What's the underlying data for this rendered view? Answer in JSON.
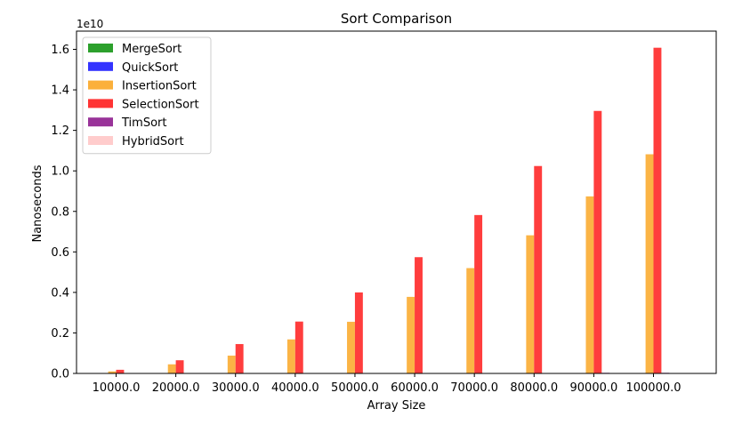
{
  "chart_data": {
    "type": "bar",
    "title": "Sort Comparison",
    "xlabel": "Array Size",
    "ylabel": "Nanoseconds",
    "y_offset_label": "1e10",
    "y_scale": 10000000000,
    "categories": [
      "10000.0",
      "20000.0",
      "30000.0",
      "40000.0",
      "50000.0",
      "60000.0",
      "70000.0",
      "80000.0",
      "90000.0",
      "100000.0"
    ],
    "ylim": [
      0,
      1.69
    ],
    "yticks": [
      0.0,
      0.2,
      0.4,
      0.6,
      0.8,
      1.0,
      1.2,
      1.4,
      1.6
    ],
    "ytick_labels": [
      "0.0",
      "0.2",
      "0.4",
      "0.6",
      "0.8",
      "1.0",
      "1.2",
      "1.4",
      "1.6"
    ],
    "legend_position": "top-left",
    "grid": false,
    "series": [
      {
        "name": "MergeSort",
        "color": "#2ca02c",
        "values": [
          0.0001,
          0.0002,
          0.0003,
          0.0004,
          0.0005,
          0.0006,
          0.0007,
          0.0008,
          0.0009,
          0.001
        ]
      },
      {
        "name": "QuickSort",
        "color": "#3333ff",
        "values": [
          0.0001,
          0.0002,
          0.0002,
          0.0003,
          0.0004,
          0.0005,
          0.0006,
          0.0007,
          0.0008,
          0.0009
        ]
      },
      {
        "name": "InsertionSort",
        "color": "#fbb03b",
        "values": [
          0.01,
          0.045,
          0.088,
          0.168,
          0.255,
          0.378,
          0.52,
          0.682,
          0.874,
          1.082
        ]
      },
      {
        "name": "SelectionSort",
        "color": "#ff3333",
        "values": [
          0.018,
          0.065,
          0.145,
          0.256,
          0.4,
          0.574,
          0.782,
          1.024,
          1.296,
          1.608
        ]
      },
      {
        "name": "TimSort",
        "color": "#993399",
        "values": [
          0.0001,
          0.0001,
          0.0002,
          0.0003,
          0.0004,
          0.0005,
          0.0006,
          0.0007,
          0.003,
          0.003
        ]
      },
      {
        "name": "HybridSort",
        "color": "#ffcccc",
        "values": [
          0.0001,
          0.0002,
          0.0002,
          0.0003,
          0.0004,
          0.0005,
          0.0006,
          0.0007,
          0.0008,
          0.0009
        ]
      }
    ]
  }
}
